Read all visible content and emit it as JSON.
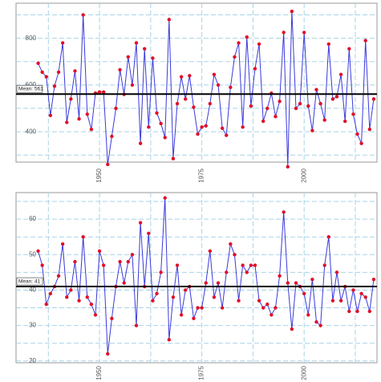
{
  "chart_data": [
    {
      "type": "line",
      "x": [
        1935,
        1936,
        1937,
        1938,
        1939,
        1940,
        1941,
        1942,
        1943,
        1944,
        1945,
        1946,
        1947,
        1948,
        1949,
        1950,
        1951,
        1952,
        1953,
        1954,
        1955,
        1956,
        1957,
        1958,
        1959,
        1960,
        1961,
        1962,
        1963,
        1964,
        1965,
        1966,
        1967,
        1968,
        1969,
        1970,
        1971,
        1972,
        1973,
        1974,
        1975,
        1976,
        1977,
        1978,
        1979,
        1980,
        1981,
        1982,
        1983,
        1984,
        1985,
        1986,
        1987,
        1988,
        1989,
        1990,
        1991,
        1992,
        1993,
        1994,
        1995,
        1996,
        1997,
        1998,
        1999,
        2000,
        2001,
        2002,
        2003,
        2004,
        2005,
        2006,
        2007,
        2008,
        2009,
        2010,
        2011,
        2012,
        2013,
        2014,
        2015,
        2016,
        2017
      ],
      "series": [
        {
          "color": "#3a3adc",
          "marker_color": "#e0102a",
          "values": [
            693,
            655,
            635,
            470,
            595,
            655,
            780,
            440,
            540,
            660,
            455,
            900,
            475,
            410,
            565,
            570,
            570,
            260,
            380,
            500,
            665,
            560,
            720,
            600,
            780,
            350,
            755,
            420,
            715,
            480,
            435,
            375,
            880,
            285,
            520,
            635,
            540,
            640,
            505,
            390,
            420,
            425,
            520,
            645,
            600,
            415,
            385,
            590,
            720,
            780,
            420,
            805,
            510,
            670,
            775,
            445,
            500,
            565,
            465,
            530,
            825,
            250,
            915,
            500,
            520,
            825,
            510,
            405,
            580,
            520,
            450,
            775,
            540,
            550,
            645,
            445,
            755,
            475,
            390,
            350,
            790,
            410,
            540
          ]
        }
      ],
      "mean_line": {
        "value": 561,
        "label": "Mean: 561"
      },
      "xlim": [
        1929.6,
        2017.8
      ],
      "xticks": [
        1950,
        1975,
        2000
      ],
      "x_minor_grid": [
        1937.5,
        1962.5,
        1987.5,
        2012.5
      ],
      "ylim": [
        270,
        950
      ],
      "yticks": [
        400,
        600,
        800
      ],
      "y_minor_grid": [
        300,
        500,
        700,
        900
      ],
      "grid": true
    },
    {
      "type": "line",
      "x": [
        1935,
        1936,
        1937,
        1938,
        1939,
        1940,
        1941,
        1942,
        1943,
        1944,
        1945,
        1946,
        1947,
        1948,
        1949,
        1950,
        1951,
        1952,
        1953,
        1954,
        1955,
        1956,
        1957,
        1958,
        1959,
        1960,
        1961,
        1962,
        1963,
        1964,
        1965,
        1966,
        1967,
        1968,
        1969,
        1970,
        1971,
        1972,
        1973,
        1974,
        1975,
        1976,
        1977,
        1978,
        1979,
        1980,
        1981,
        1982,
        1983,
        1984,
        1985,
        1986,
        1987,
        1988,
        1989,
        1990,
        1991,
        1992,
        1993,
        1994,
        1995,
        1996,
        1997,
        1998,
        1999,
        2000,
        2001,
        2002,
        2003,
        2004,
        2005,
        2006,
        2007,
        2008,
        2009,
        2010,
        2011,
        2012,
        2013,
        2014,
        2015,
        2016,
        2017
      ],
      "series": [
        {
          "color": "#3a3adc",
          "marker_color": "#e0102a",
          "values": [
            51,
            47,
            36,
            39,
            41,
            44,
            53,
            38,
            40,
            48,
            37,
            55,
            38,
            36,
            33,
            51,
            47,
            22,
            32,
            41,
            48,
            42,
            48,
            50,
            30,
            59,
            41,
            56,
            37,
            39,
            45,
            66,
            26,
            38,
            47,
            33,
            40,
            41,
            32,
            35,
            35,
            42,
            51,
            38,
            42,
            35,
            45,
            53,
            50,
            37,
            47,
            45,
            47,
            47,
            37,
            35,
            36,
            33,
            35,
            44,
            62,
            42,
            29,
            42,
            41,
            39,
            33,
            43,
            31,
            30,
            47,
            55,
            37,
            45,
            37,
            41,
            34,
            40,
            34,
            39,
            38,
            34,
            43
          ]
        }
      ],
      "mean_line": {
        "value": 41,
        "label": "Mean: 41"
      },
      "xlim": [
        1929.6,
        2017.8
      ],
      "xticks": [
        1950,
        1975,
        2000
      ],
      "x_minor_grid": [
        1937.5,
        1962.5,
        1987.5,
        2012.5
      ],
      "ylim": [
        19.5,
        67.5
      ],
      "yticks": [
        20,
        30,
        40,
        50,
        60
      ],
      "y_minor_grid": [
        25,
        35,
        45,
        55,
        65
      ],
      "grid": true
    }
  ]
}
